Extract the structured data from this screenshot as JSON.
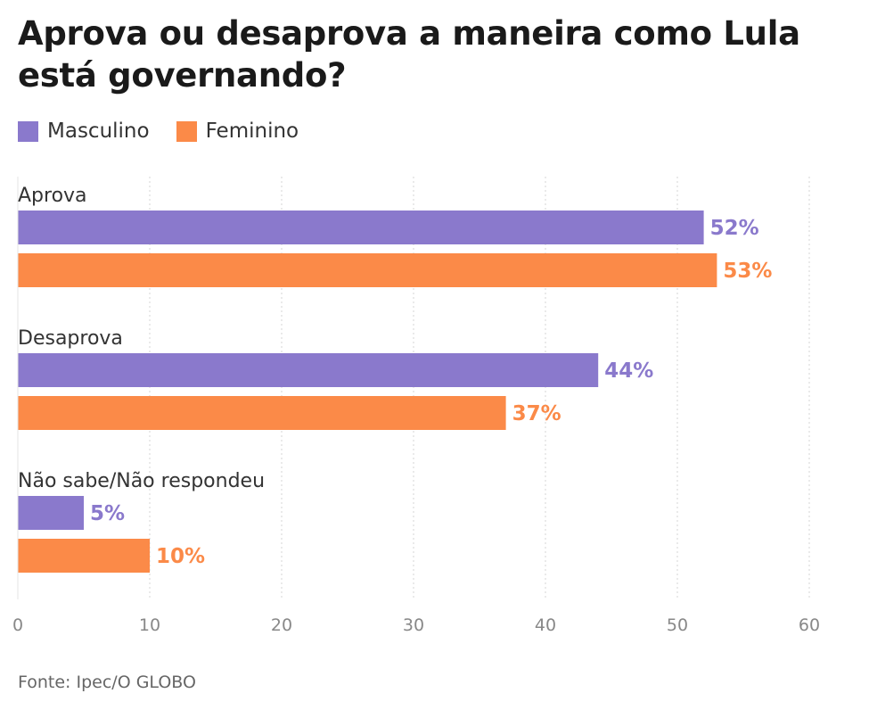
{
  "chart_data": {
    "type": "bar",
    "orientation": "horizontal",
    "title": "Aprova ou desaprova a maneira como Lula está governando?",
    "categories": [
      "Aprova",
      "Desaprova",
      "Não sabe/Não respondeu"
    ],
    "series": [
      {
        "name": "Masculino",
        "color": "#8a79cc",
        "values": [
          52,
          44,
          5
        ]
      },
      {
        "name": "Feminino",
        "color": "#fb8a48",
        "values": [
          53,
          37,
          10
        ]
      }
    ],
    "xlim": [
      0,
      60
    ],
    "xticks": [
      0,
      10,
      20,
      30,
      40,
      50,
      60
    ],
    "value_suffix": "%",
    "grid": true,
    "legend": "top-left",
    "source": "Fonte: Ipec/O GLOBO"
  }
}
